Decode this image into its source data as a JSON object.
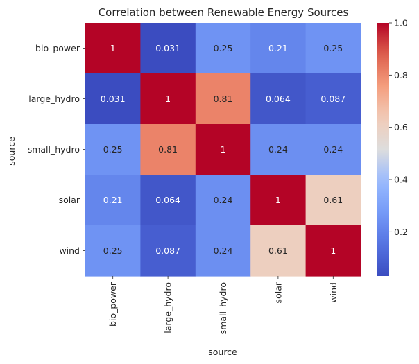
{
  "chart_data": {
    "type": "heatmap",
    "title": "Correlation between Renewable Energy Sources",
    "xlabel": "source",
    "ylabel": "source",
    "x_categories": [
      "bio_power",
      "large_hydro",
      "small_hydro",
      "solar",
      "wind"
    ],
    "y_categories": [
      "bio_power",
      "large_hydro",
      "small_hydro",
      "solar",
      "wind"
    ],
    "values": [
      [
        1,
        0.031,
        0.25,
        0.21,
        0.25
      ],
      [
        0.031,
        1,
        0.81,
        0.064,
        0.087
      ],
      [
        0.25,
        0.81,
        1,
        0.24,
        0.24
      ],
      [
        0.21,
        0.064,
        0.24,
        1,
        0.61
      ],
      [
        0.25,
        0.087,
        0.24,
        0.61,
        1
      ]
    ],
    "cell_labels": [
      [
        "1",
        "0.031",
        "0.25",
        "0.21",
        "0.25"
      ],
      [
        "0.031",
        "1",
        "0.81",
        "0.064",
        "0.087"
      ],
      [
        "0.25",
        "0.81",
        "1",
        "0.24",
        "0.24"
      ],
      [
        "0.21",
        "0.064",
        "0.24",
        "1",
        "0.61"
      ],
      [
        "0.25",
        "0.087",
        "0.24",
        "0.61",
        "1"
      ]
    ],
    "colormap": "coolwarm",
    "vmin": 0.031,
    "vmax": 1.0,
    "colorbar_ticks": [
      0.2,
      0.4,
      0.6,
      0.8,
      1.0
    ],
    "colorbar_tick_labels": [
      "0.2",
      "0.4",
      "0.6",
      "0.8",
      "1.0"
    ],
    "grid": false,
    "colorbar_position": "right"
  }
}
